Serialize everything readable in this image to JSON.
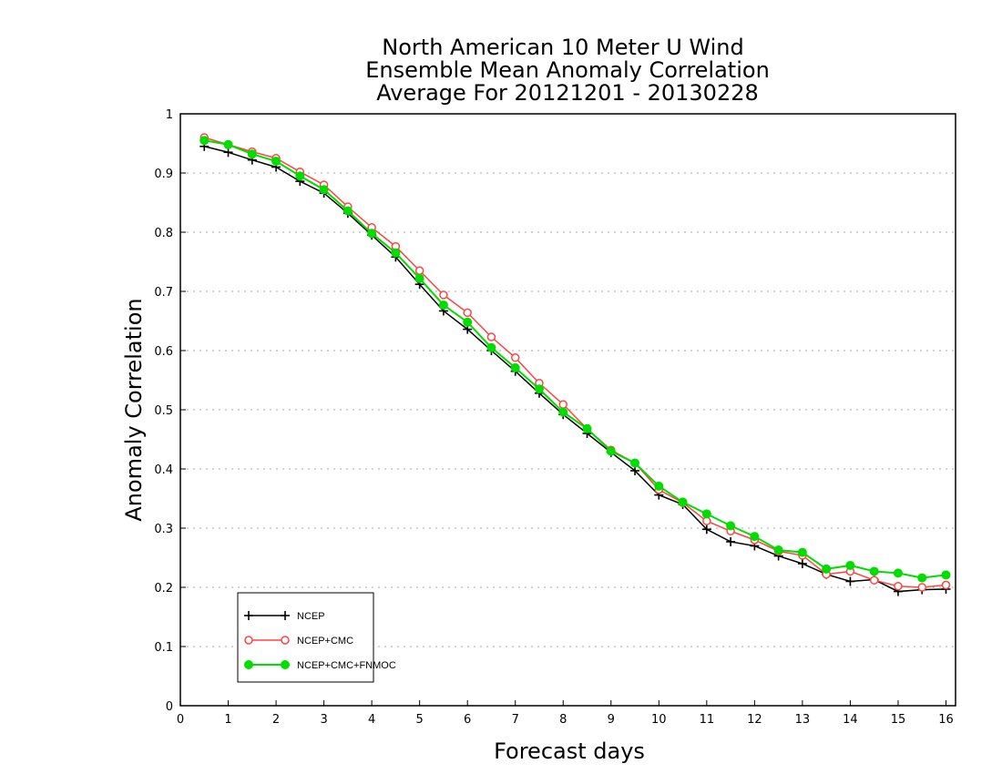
{
  "chart_data": {
    "type": "line",
    "title_lines": [
      "North American 10 Meter U Wind",
      "Ensemble Mean Anomaly Correlation",
      "Average For 20121201 - 20130228"
    ],
    "xlabel": "Forecast days",
    "ylabel": "Anomaly Correlation",
    "xlim": [
      0,
      16.2
    ],
    "ylim": [
      0,
      1
    ],
    "xticks": [
      0,
      1,
      2,
      3,
      4,
      5,
      6,
      7,
      8,
      9,
      10,
      11,
      12,
      13,
      14,
      15,
      16
    ],
    "yticks": [
      0,
      0.1,
      0.2,
      0.3,
      0.4,
      0.5,
      0.6,
      0.7,
      0.8,
      0.9,
      1
    ],
    "xtick_labels": [
      "0",
      "1",
      "2",
      "3",
      "4",
      "5",
      "6",
      "7",
      "8",
      "9",
      "10",
      "11",
      "12",
      "13",
      "14",
      "15",
      "16"
    ],
    "ytick_labels": [
      "0",
      "0.1",
      "0.2",
      "0.3",
      "0.4",
      "0.5",
      "0.6",
      "0.7",
      "0.8",
      "0.9",
      "1"
    ],
    "grid": "horizontal dotted",
    "legend_position": "bottom-left",
    "x": [
      0.5,
      1.0,
      1.5,
      2.0,
      2.5,
      3.0,
      3.5,
      4.0,
      4.5,
      5.0,
      5.5,
      6.0,
      6.5,
      7.0,
      7.5,
      8.0,
      8.5,
      9.0,
      9.5,
      10.0,
      10.5,
      11.0,
      11.5,
      12.0,
      12.5,
      13.0,
      13.5,
      14.0,
      14.5,
      15.0,
      15.5,
      16.0
    ],
    "series": [
      {
        "name": "NCEP",
        "color": "#000000",
        "marker": "plus",
        "values": [
          0.945,
          0.935,
          0.922,
          0.91,
          0.886,
          0.866,
          0.832,
          0.795,
          0.758,
          0.712,
          0.667,
          0.636,
          0.6,
          0.565,
          0.528,
          0.492,
          0.46,
          0.428,
          0.397,
          0.356,
          0.34,
          0.298,
          0.277,
          0.27,
          0.253,
          0.24,
          0.222,
          0.21,
          0.213,
          0.193,
          0.196,
          0.197
        ]
      },
      {
        "name": "NCEP+CMC",
        "color": "#ff4444",
        "marker": "open-circle",
        "values": [
          0.96,
          0.948,
          0.936,
          0.925,
          0.902,
          0.88,
          0.843,
          0.808,
          0.776,
          0.735,
          0.694,
          0.664,
          0.623,
          0.588,
          0.545,
          0.509,
          0.468,
          0.432,
          0.41,
          0.365,
          0.343,
          0.312,
          0.295,
          0.28,
          0.261,
          0.254,
          0.222,
          0.227,
          0.212,
          0.202,
          0.2,
          0.204
        ]
      },
      {
        "name": "NCEP+CMC+FNMOC",
        "color": "#00dd00",
        "marker": "filled-circle",
        "values": [
          0.955,
          0.948,
          0.932,
          0.92,
          0.895,
          0.872,
          0.836,
          0.798,
          0.765,
          0.722,
          0.677,
          0.648,
          0.605,
          0.571,
          0.535,
          0.496,
          0.468,
          0.43,
          0.41,
          0.371,
          0.344,
          0.324,
          0.304,
          0.286,
          0.263,
          0.259,
          0.231,
          0.237,
          0.227,
          0.224,
          0.216,
          0.221
        ]
      }
    ]
  }
}
